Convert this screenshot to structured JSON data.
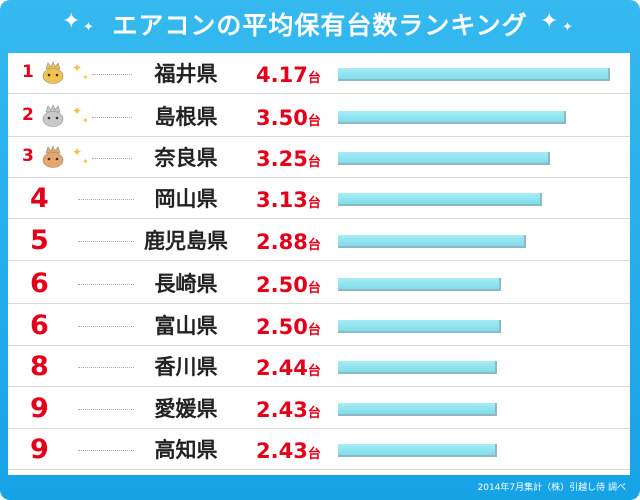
{
  "header": {
    "title": "エアコンの平均保有台数ランキング",
    "source": "2014年7月集計（株）引越し侍 調べ"
  },
  "chart_data": {
    "type": "bar",
    "title": "エアコンの平均保有台数ランキング",
    "unit": "台",
    "categories": [
      "福井県",
      "島根県",
      "奈良県",
      "岡山県",
      "鹿児島県",
      "長崎県",
      "富山県",
      "香川県",
      "愛媛県",
      "高知県"
    ],
    "ranks": [
      "1",
      "2",
      "3",
      "4",
      "5",
      "6",
      "6",
      "8",
      "9",
      "9"
    ],
    "values": [
      4.17,
      3.5,
      3.25,
      3.13,
      2.88,
      2.5,
      2.5,
      2.44,
      2.43,
      2.43
    ],
    "value_labels": [
      "4.17",
      "3.50",
      "3.25",
      "3.13",
      "2.88",
      "2.50",
      "2.50",
      "2.44",
      "2.43",
      "2.43"
    ],
    "medals": [
      "gold",
      "silver",
      "bronze"
    ],
    "colors": {
      "rank": "#e3001b",
      "value": "#e3001b",
      "bar": "#8fe3ee",
      "gold": "#f2c14e",
      "silver": "#c9c9c9",
      "bronze": "#e8a66b",
      "frame": "#1aa6e8"
    },
    "orientation": "horizontal",
    "grid": false
  }
}
